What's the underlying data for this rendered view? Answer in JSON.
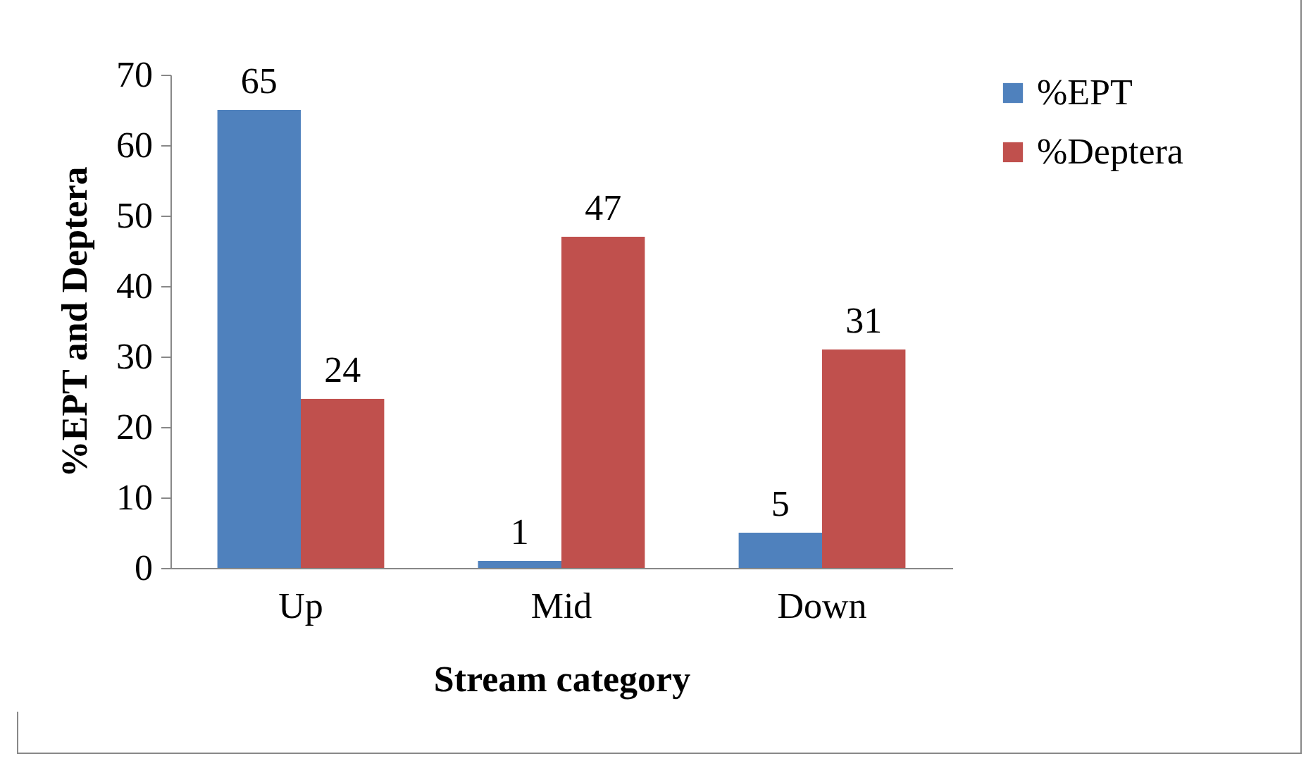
{
  "chart_data": {
    "type": "bar",
    "xlabel": "Stream category",
    "ylabel": "%EPT and Deptera",
    "categories": [
      "Up",
      "Mid",
      "Down"
    ],
    "series": [
      {
        "name": "%EPT",
        "color": "#4f81bd",
        "values": [
          65,
          1,
          5
        ]
      },
      {
        "name": "%Deptera",
        "color": "#c0504d",
        "values": [
          24,
          47,
          31
        ]
      }
    ],
    "ylim": [
      0,
      70
    ],
    "yticks": [
      0,
      10,
      20,
      30,
      40,
      50,
      60,
      70
    ],
    "grid": false,
    "legend": "right",
    "data_labels": true
  }
}
